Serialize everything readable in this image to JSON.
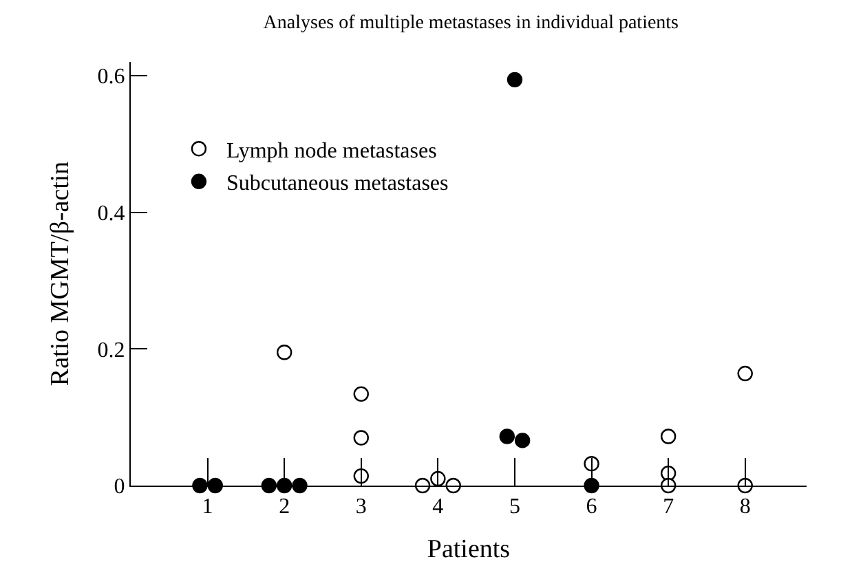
{
  "chart_data": {
    "type": "scatter",
    "title": "Analyses of multiple metastases in individual patients",
    "xlabel": "Patients",
    "ylabel": "Ratio MGMT/β-actin",
    "xlim": [
      0,
      8.8
    ],
    "xticks": [
      1,
      2,
      3,
      4,
      5,
      6,
      7,
      8
    ],
    "ylim": [
      0,
      0.62
    ],
    "yticks": [
      0,
      0.2,
      0.4,
      0.6
    ],
    "legend": "top left",
    "marker": "circle",
    "series": [
      {
        "name": "Lymph node metastases",
        "color": "#ffffff",
        "x": [
          2,
          3,
          3,
          3,
          3.8,
          4,
          4.2,
          6,
          7,
          7,
          7,
          8,
          8
        ],
        "values": [
          0.195,
          0.134,
          0.07,
          0.014,
          0,
          0.01,
          0,
          0.032,
          0.072,
          0.018,
          0,
          0.164,
          0
        ]
      },
      {
        "name": "Subcutaneous metastases",
        "color": "#000000",
        "x": [
          0.9,
          1.1,
          1.8,
          2,
          2.2,
          4.9,
          5.1,
          5,
          6
        ],
        "values": [
          0,
          0,
          0,
          0,
          0,
          0.072,
          0.066,
          0.594,
          0
        ]
      }
    ]
  }
}
